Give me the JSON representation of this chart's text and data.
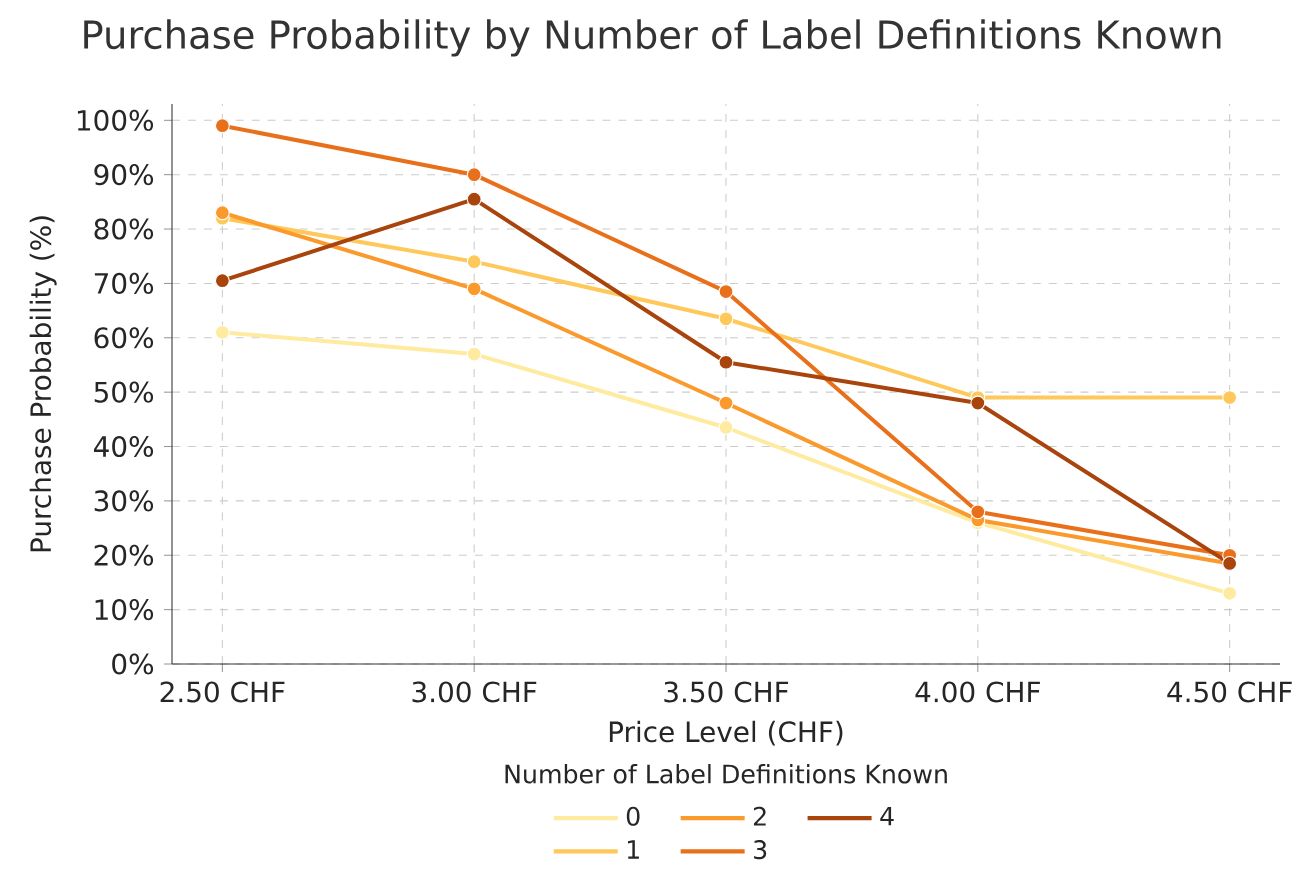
{
  "chart_data": {
    "type": "line",
    "title": "Purchase Probability by Number of Label Definitions Known",
    "xlabel": "Price Level (CHF)",
    "ylabel": "Purchase Probability (%)",
    "legend_title": "Number of Label Definitions Known",
    "x": [
      2.5,
      3.0,
      3.5,
      4.0,
      4.5
    ],
    "series": [
      {
        "name": "0",
        "color": "#feeba0",
        "values": [
          61,
          57,
          43.5,
          26,
          13
        ]
      },
      {
        "name": "1",
        "color": "#fec95a",
        "values": [
          82,
          74,
          63.5,
          49,
          49
        ]
      },
      {
        "name": "2",
        "color": "#fb9a2c",
        "values": [
          83,
          69,
          48,
          26.5,
          18.5
        ]
      },
      {
        "name": "3",
        "color": "#e9701a",
        "values": [
          99,
          90,
          68.5,
          28,
          20
        ]
      },
      {
        "name": "4",
        "color": "#a8440c",
        "values": [
          70.5,
          85.5,
          55.5,
          48,
          18.5
        ]
      }
    ],
    "xlim": [
      2.4,
      4.6
    ],
    "ylim": [
      0,
      103
    ],
    "xticks": [
      {
        "value": 2.5,
        "label": "2.50 CHF"
      },
      {
        "value": 3.0,
        "label": "3.00 CHF"
      },
      {
        "value": 3.5,
        "label": "3.50 CHF"
      },
      {
        "value": 4.0,
        "label": "4.00 CHF"
      },
      {
        "value": 4.5,
        "label": "4.50 CHF"
      }
    ],
    "yticks": [
      {
        "value": 0,
        "label": "0%"
      },
      {
        "value": 10,
        "label": "10%"
      },
      {
        "value": 20,
        "label": "20%"
      },
      {
        "value": 30,
        "label": "30%"
      },
      {
        "value": 40,
        "label": "40%"
      },
      {
        "value": 50,
        "label": "50%"
      },
      {
        "value": 60,
        "label": "60%"
      },
      {
        "value": 70,
        "label": "70%"
      },
      {
        "value": 80,
        "label": "80%"
      },
      {
        "value": 90,
        "label": "90%"
      },
      {
        "value": 100,
        "label": "100%"
      }
    ],
    "grid": true,
    "legend": "bottom",
    "marker": "circle",
    "line_style": "solid"
  }
}
